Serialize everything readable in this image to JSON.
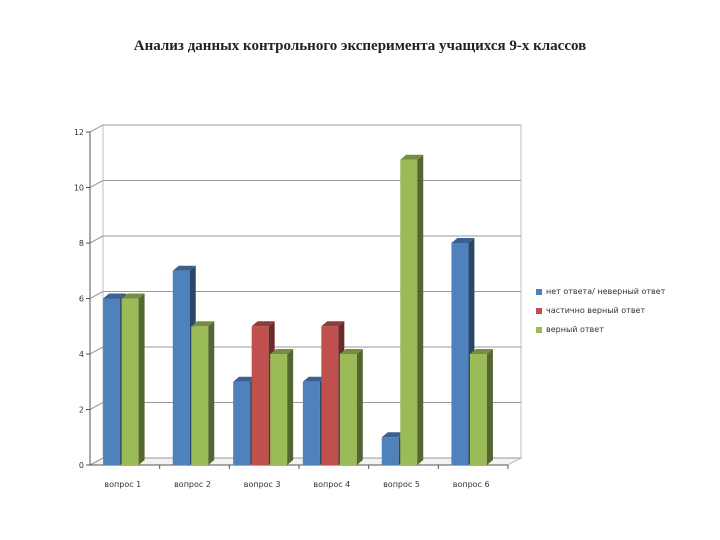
{
  "title": "Анализ данных контрольного эксперимента учащихся 9-х классов",
  "chart_data": {
    "type": "bar",
    "title": "Анализ данных контрольного эксперимента учащихся 9-х классов",
    "categories": [
      "вопрос 1",
      "вопрос 2",
      "вопрос 3",
      "вопрос 4",
      "вопрос 5",
      "вопрос 6"
    ],
    "series": [
      {
        "name": "нет ответа/ неверный ответ",
        "color": "#4f81bd",
        "values": [
          6,
          7,
          3,
          3,
          1,
          8
        ]
      },
      {
        "name": "частично верный ответ",
        "color": "#c0504d",
        "values": [
          0,
          0,
          5,
          5,
          0,
          0
        ]
      },
      {
        "name": "верный ответ",
        "color": "#9bbb59",
        "values": [
          6,
          5,
          4,
          4,
          11,
          4
        ]
      }
    ],
    "yticks": [
      "0",
      "2",
      "4",
      "6",
      "8",
      "10",
      "12"
    ],
    "ylim": [
      0,
      12
    ],
    "grid": true,
    "legend": "right"
  }
}
